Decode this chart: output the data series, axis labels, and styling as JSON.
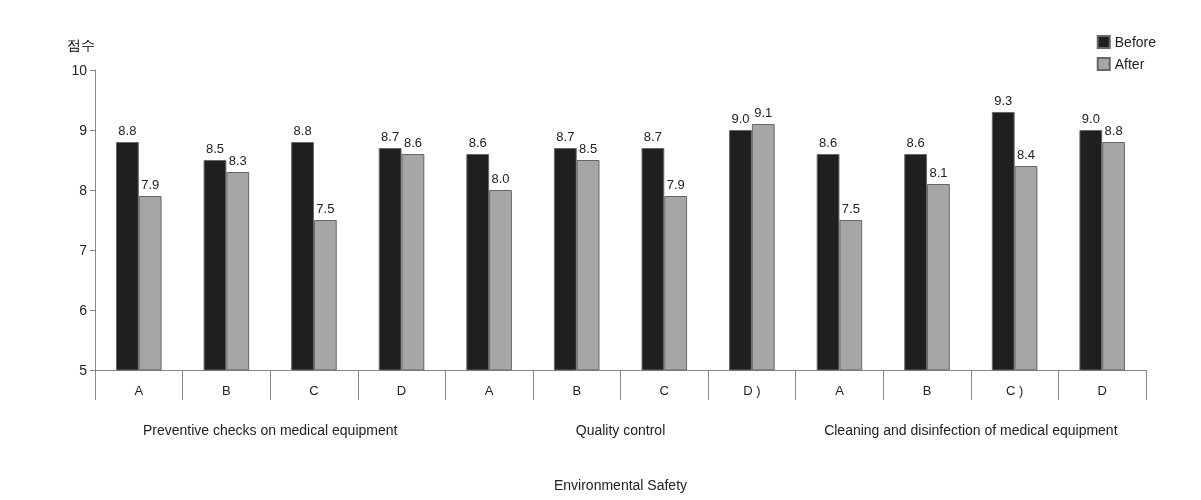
{
  "chart_data": {
    "type": "bar",
    "ylabel": "점수",
    "categories": [
      "A",
      "B",
      "C",
      "D",
      "A",
      "B",
      "C",
      "D )",
      "A",
      "B",
      "C )",
      "D"
    ],
    "series": [
      {
        "name": "Before",
        "color": "#1f1f1f",
        "values": [
          8.8,
          8.5,
          8.8,
          8.7,
          8.6,
          8.7,
          8.7,
          9.0,
          8.6,
          8.6,
          9.3,
          9.0
        ],
        "value_labels": [
          "8.8",
          "8.5",
          "8.8",
          "8.7",
          "8.6",
          "8.7",
          "8.7",
          "9.0",
          "8.6",
          "8.6",
          "9.3",
          "9.0"
        ]
      },
      {
        "name": "After",
        "color": "#a6a6a6",
        "values": [
          7.9,
          8.3,
          7.5,
          8.6,
          8.0,
          8.5,
          7.9,
          9.1,
          7.5,
          8.1,
          8.4,
          8.8
        ],
        "value_labels": [
          "7.9",
          "8.3",
          "7.5",
          "8.6",
          "8.0",
          "8.5",
          "7.9",
          "9.1",
          "7.5",
          "8.1",
          "8.4",
          "8.8"
        ]
      }
    ],
    "ylim": [
      5,
      10
    ],
    "yticks": [
      5,
      6,
      7,
      8,
      9,
      10
    ],
    "grid": false,
    "legend": "top right",
    "annotations": [
      "Preventive checks on medical equipment",
      "Quality control",
      "Cleaning and disinfection of medical equipment",
      "Environmental Safety"
    ]
  }
}
